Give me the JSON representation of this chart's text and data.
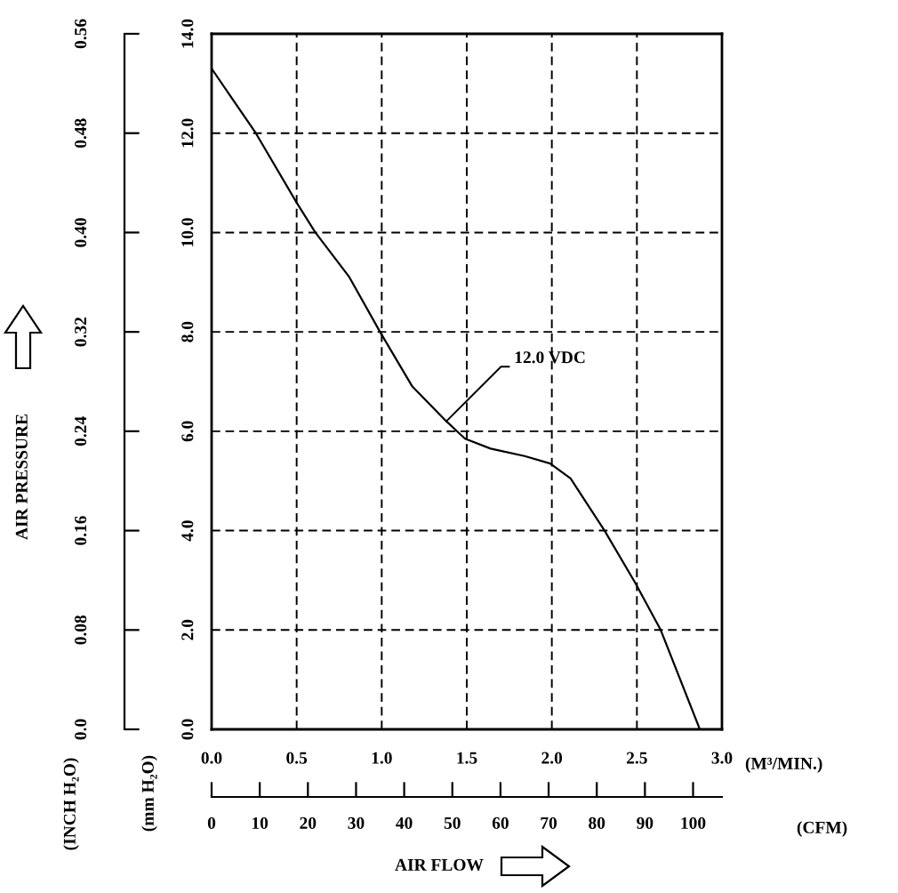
{
  "chart_data": {
    "type": "line",
    "x": [
      0,
      0.26,
      0.5,
      0.61,
      0.81,
      0.99,
      1.18,
      1.38,
      1.49,
      1.64,
      1.84,
      1.99,
      2.11,
      2.31,
      2.49,
      2.64,
      2.87
    ],
    "series": [
      {
        "color": "#000000",
        "values": [
          13.3,
          12.0,
          10.6,
          10.0,
          9.1,
          8.0,
          6.9,
          6.2,
          5.85,
          5.65,
          5.5,
          5.35,
          5.05,
          4.0,
          2.95,
          2.0,
          0.0
        ]
      }
    ],
    "xlim": [
      0,
      3.0
    ],
    "ylim": [
      0,
      14.0
    ],
    "xticks": [
      {
        "value": 0,
        "label": "0.0"
      },
      0.5,
      {
        "value": 1,
        "label": "1.0"
      },
      1.5,
      {
        "value": 2,
        "label": "2.0"
      },
      2.5,
      {
        "value": 3,
        "label": "3.0"
      }
    ],
    "yticks": [
      {
        "value": 0,
        "label": "0.0"
      },
      {
        "value": 2,
        "label": "2.0"
      },
      {
        "value": 4,
        "label": "4.0"
      },
      {
        "value": 6,
        "label": "6.0"
      },
      {
        "value": 8,
        "label": "8.0"
      },
      {
        "value": 10,
        "label": "10.0"
      },
      {
        "value": 12,
        "label": "12.0"
      },
      {
        "value": 14,
        "label": "14.0"
      }
    ],
    "y2lim": [
      0,
      0.56
    ],
    "y2ticks": [
      {
        "value": 0,
        "label": "0.0"
      },
      0.08,
      0.16,
      0.24,
      0.32,
      {
        "value": 0.4,
        "label": "0.40"
      },
      0.48,
      0.56
    ],
    "y2label": "AIR PRESSURE",
    "x2lim": [
      0,
      106
    ],
    "x2ticks": [
      0,
      10,
      20,
      30,
      40,
      50,
      60,
      70,
      80,
      90,
      100
    ],
    "x2label": "(CFM)",
    "xlabel": "AIR FLOW",
    "grid": true,
    "annotations": [
      {
        "text": "12.0 VDC",
        "x": 1.38,
        "y": 6.2
      },
      "(M³/MIN.)",
      "(mm H₂O)",
      "(INCH H₂O)"
    ]
  }
}
